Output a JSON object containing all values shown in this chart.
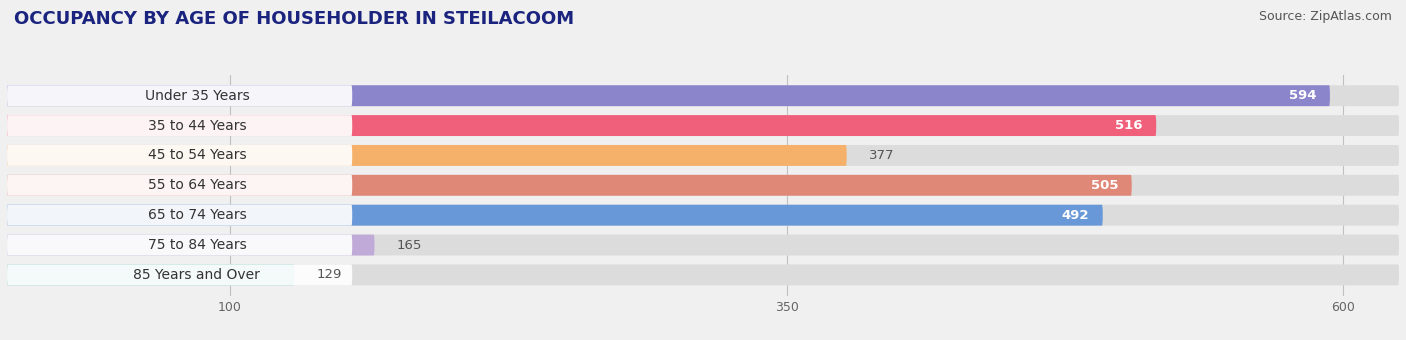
{
  "title": "OCCUPANCY BY AGE OF HOUSEHOLDER IN STEILACOOM",
  "source": "Source: ZipAtlas.com",
  "categories": [
    "Under 35 Years",
    "35 to 44 Years",
    "45 to 54 Years",
    "55 to 64 Years",
    "65 to 74 Years",
    "75 to 84 Years",
    "85 Years and Over"
  ],
  "values": [
    594,
    516,
    377,
    505,
    492,
    165,
    129
  ],
  "bar_colors": [
    "#8b85cc",
    "#f0607a",
    "#f5b06a",
    "#e08878",
    "#6898d8",
    "#c0aad8",
    "#80c8c0"
  ],
  "xlim_min": 0,
  "xlim_max": 625,
  "xticks": [
    100,
    350,
    600
  ],
  "background_color": "#f0f0f0",
  "bar_bg_color": "#dcdcdc",
  "title_fontsize": 13,
  "source_fontsize": 9,
  "label_fontsize": 10,
  "value_fontsize": 9.5,
  "value_threshold": 400
}
